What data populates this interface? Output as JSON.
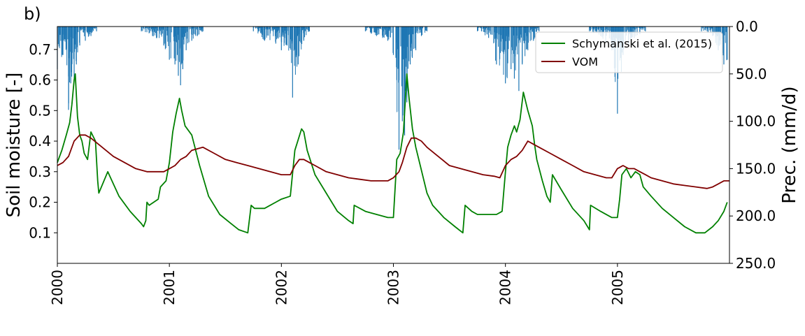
{
  "chart_data": {
    "type": "line",
    "panel_label": "b)",
    "x_range": [
      2000.0,
      2006.0
    ],
    "x_ticks": [
      "2000",
      "2001",
      "2002",
      "2003",
      "2004",
      "2005"
    ],
    "left_axis": {
      "label": "Soil moisture [-]",
      "range": [
        0.0,
        0.775
      ],
      "ticks": [
        "0.1",
        "0.2",
        "0.3",
        "0.4",
        "0.5",
        "0.6",
        "0.7"
      ]
    },
    "right_axis": {
      "label": "Prec. (mm/d)",
      "range": [
        250.0,
        0.0
      ],
      "inverted": true,
      "ticks": [
        "0.0",
        "50.0",
        "100.0",
        "150.0",
        "200.0",
        "250.0"
      ]
    },
    "legend": {
      "placement": "top-right"
    },
    "series": [
      {
        "name": "Schymanski et al. (2015)",
        "color": "#008000",
        "axis": "left",
        "x": [
          2000.0,
          2000.04,
          2000.08,
          2000.11,
          2000.13,
          2000.15,
          2000.16,
          2000.18,
          2000.2,
          2000.22,
          2000.24,
          2000.27,
          2000.3,
          2000.34,
          2000.36,
          2000.37,
          2000.45,
          2000.55,
          2000.65,
          2000.75,
          2000.77,
          2000.79,
          2000.8,
          2000.82,
          2000.9,
          2000.92,
          2000.97,
          2001.0,
          2001.03,
          2001.06,
          2001.09,
          2001.11,
          2001.14,
          2001.2,
          2001.27,
          2001.35,
          2001.45,
          2001.55,
          2001.62,
          2001.7,
          2001.73,
          2001.76,
          2001.85,
          2001.95,
          2002.0,
          2002.08,
          2002.12,
          2002.18,
          2002.2,
          2002.23,
          2002.3,
          2002.4,
          2002.5,
          2002.6,
          2002.64,
          2002.65,
          2002.75,
          2002.85,
          2002.95,
          2003.0,
          2003.03,
          2003.06,
          2003.09,
          2003.12,
          2003.14,
          2003.17,
          2003.2,
          2003.24,
          2003.3,
          2003.35,
          2003.45,
          2003.55,
          2003.62,
          2003.64,
          2003.7,
          2003.75,
          2003.85,
          2003.92,
          2003.97,
          2004.0,
          2004.02,
          2004.05,
          2004.08,
          2004.1,
          2004.13,
          2004.16,
          2004.2,
          2004.24,
          2004.26,
          2004.28,
          2004.33,
          2004.37,
          2004.4,
          2004.42,
          2004.5,
          2004.6,
          2004.7,
          2004.75,
          2004.76,
          2004.85,
          2004.95,
          2005.0,
          2005.02,
          2005.04,
          2005.08,
          2005.12,
          2005.16,
          2005.2,
          2005.23,
          2005.3,
          2005.4,
          2005.5,
          2005.6,
          2005.7,
          2005.74,
          2005.78,
          2005.85,
          2005.9,
          2005.95,
          2005.98
        ],
        "y": [
          0.33,
          0.37,
          0.42,
          0.46,
          0.52,
          0.6,
          0.62,
          0.48,
          0.42,
          0.4,
          0.36,
          0.34,
          0.43,
          0.4,
          0.27,
          0.23,
          0.3,
          0.22,
          0.17,
          0.13,
          0.12,
          0.14,
          0.2,
          0.19,
          0.21,
          0.25,
          0.27,
          0.33,
          0.43,
          0.49,
          0.54,
          0.5,
          0.45,
          0.42,
          0.32,
          0.22,
          0.16,
          0.13,
          0.11,
          0.1,
          0.19,
          0.18,
          0.18,
          0.2,
          0.21,
          0.22,
          0.37,
          0.44,
          0.43,
          0.37,
          0.29,
          0.23,
          0.17,
          0.14,
          0.13,
          0.19,
          0.17,
          0.16,
          0.15,
          0.15,
          0.34,
          0.36,
          0.43,
          0.62,
          0.54,
          0.44,
          0.38,
          0.32,
          0.23,
          0.19,
          0.15,
          0.12,
          0.1,
          0.19,
          0.17,
          0.16,
          0.16,
          0.16,
          0.17,
          0.3,
          0.38,
          0.42,
          0.45,
          0.43,
          0.47,
          0.56,
          0.5,
          0.45,
          0.39,
          0.34,
          0.27,
          0.22,
          0.2,
          0.29,
          0.24,
          0.18,
          0.14,
          0.11,
          0.19,
          0.17,
          0.15,
          0.15,
          0.21,
          0.29,
          0.31,
          0.28,
          0.3,
          0.29,
          0.25,
          0.22,
          0.18,
          0.15,
          0.12,
          0.1,
          0.1,
          0.1,
          0.12,
          0.14,
          0.17,
          0.2
        ]
      },
      {
        "name": "VOM",
        "color": "#800000",
        "axis": "left",
        "x": [
          2000.0,
          2000.05,
          2000.1,
          2000.15,
          2000.2,
          2000.25,
          2000.3,
          2000.4,
          2000.5,
          2000.6,
          2000.7,
          2000.8,
          2000.9,
          2000.95,
          2001.0,
          2001.05,
          2001.1,
          2001.15,
          2001.2,
          2001.3,
          2001.4,
          2001.5,
          2001.6,
          2001.7,
          2001.8,
          2001.9,
          2002.0,
          2002.08,
          2002.12,
          2002.16,
          2002.2,
          2002.25,
          2002.3,
          2002.4,
          2002.5,
          2002.6,
          2002.7,
          2002.8,
          2002.9,
          2002.95,
          2003.0,
          2003.05,
          2003.08,
          2003.12,
          2003.16,
          2003.2,
          2003.25,
          2003.3,
          2003.4,
          2003.5,
          2003.6,
          2003.7,
          2003.8,
          2003.9,
          2003.95,
          2004.0,
          2004.05,
          2004.1,
          2004.15,
          2004.2,
          2004.25,
          2004.3,
          2004.4,
          2004.5,
          2004.6,
          2004.7,
          2004.8,
          2004.9,
          2004.95,
          2005.0,
          2005.05,
          2005.1,
          2005.15,
          2005.2,
          2005.25,
          2005.3,
          2005.4,
          2005.5,
          2005.6,
          2005.7,
          2005.8,
          2005.85,
          2005.9,
          2005.95,
          2006.0
        ],
        "y": [
          0.32,
          0.33,
          0.35,
          0.4,
          0.42,
          0.42,
          0.41,
          0.38,
          0.35,
          0.33,
          0.31,
          0.3,
          0.3,
          0.3,
          0.31,
          0.32,
          0.34,
          0.35,
          0.37,
          0.38,
          0.36,
          0.34,
          0.33,
          0.32,
          0.31,
          0.3,
          0.29,
          0.29,
          0.32,
          0.34,
          0.34,
          0.33,
          0.32,
          0.3,
          0.29,
          0.28,
          0.275,
          0.27,
          0.27,
          0.27,
          0.28,
          0.3,
          0.33,
          0.38,
          0.41,
          0.41,
          0.4,
          0.38,
          0.35,
          0.32,
          0.31,
          0.3,
          0.29,
          0.285,
          0.28,
          0.32,
          0.34,
          0.35,
          0.37,
          0.4,
          0.39,
          0.38,
          0.36,
          0.34,
          0.32,
          0.3,
          0.29,
          0.28,
          0.28,
          0.31,
          0.32,
          0.31,
          0.31,
          0.3,
          0.29,
          0.28,
          0.27,
          0.26,
          0.255,
          0.25,
          0.245,
          0.25,
          0.26,
          0.27,
          0.27
        ]
      }
    ],
    "precipitation": {
      "color": "#1f77b4",
      "axis": "right",
      "wet_seasons": [
        {
          "x": [
            2000.0,
            2000.05,
            2000.1,
            2000.12,
            2000.15,
            2000.17,
            2000.2,
            2000.25,
            2000.3,
            2000.35
          ],
          "y": [
            45,
            30,
            88,
            60,
            55,
            40,
            20,
            15,
            10,
            5
          ]
        },
        {
          "x": [
            2000.75,
            2000.85,
            2000.95,
            2001.0,
            2001.05,
            2001.08,
            2001.1,
            2001.12,
            2001.15,
            2001.2,
            2001.25,
            2001.3
          ],
          "y": [
            5,
            10,
            20,
            35,
            40,
            52,
            62,
            45,
            25,
            15,
            10,
            5
          ]
        },
        {
          "x": [
            2001.75,
            2001.85,
            2001.95,
            2002.0,
            2002.05,
            2002.1,
            2002.15,
            2002.2,
            2002.25
          ],
          "y": [
            5,
            15,
            18,
            25,
            20,
            75,
            40,
            15,
            5
          ]
        },
        {
          "x": [
            2002.75,
            2002.85,
            2002.95,
            2003.0,
            2003.05,
            2003.08,
            2003.1,
            2003.12,
            2003.15,
            2003.2,
            2003.25,
            2003.3
          ],
          "y": [
            5,
            10,
            15,
            30,
            130,
            100,
            115,
            80,
            40,
            25,
            10,
            5
          ]
        },
        {
          "x": [
            2003.75,
            2003.85,
            2003.92,
            2004.0,
            2004.05,
            2004.08,
            2004.12,
            2004.15,
            2004.2,
            2004.25,
            2004.3
          ],
          "y": [
            5,
            12,
            40,
            60,
            45,
            55,
            68,
            40,
            25,
            15,
            5
          ]
        },
        {
          "x": [
            2004.75,
            2004.85,
            2004.95,
            2005.0,
            2005.05,
            2005.1,
            2005.15,
            2005.2,
            2005.25
          ],
          "y": [
            5,
            10,
            25,
            92,
            30,
            20,
            12,
            8,
            5
          ]
        },
        {
          "x": [
            2005.75,
            2005.85,
            2005.9,
            2005.95,
            2005.98
          ],
          "y": [
            5,
            10,
            25,
            40,
            35
          ]
        }
      ]
    }
  }
}
